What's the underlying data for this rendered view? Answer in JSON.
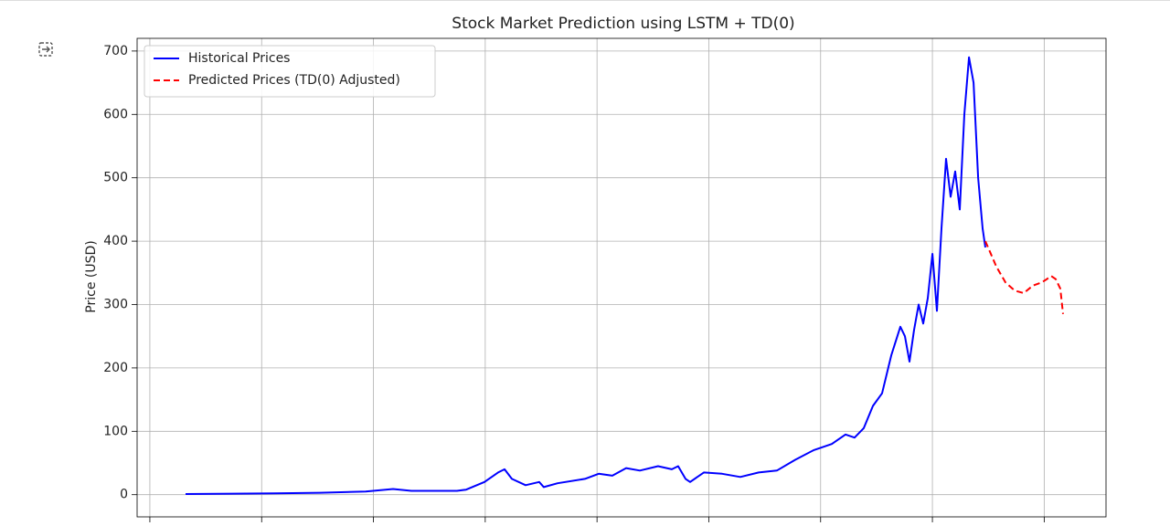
{
  "chart_data": {
    "type": "line",
    "title": "Stock Market Prediction using LSTM + TD(0)",
    "y_label": "Price (USD)",
    "xlim": [
      -114,
      8553
    ],
    "xticks": [
      0,
      1000,
      2000,
      3000,
      4000,
      5000,
      6000,
      7000,
      8000
    ],
    "ylim": [
      -35,
      720
    ],
    "yticks": [
      0,
      100,
      200,
      300,
      400,
      500,
      600,
      700
    ],
    "grid": true,
    "legend": "upper left",
    "series": [
      {
        "name": "Historical Prices",
        "color": "#0000ff",
        "linestyle": "solid",
        "x": [
          319,
          1112,
          1521,
          1930,
          2175,
          2339,
          2747,
          2829,
          2993,
          3115,
          3173,
          3238,
          3361,
          3483,
          3524,
          3647,
          3892,
          4015,
          4137,
          4260,
          4383,
          4546,
          4669,
          4726,
          4792,
          4833,
          4955,
          5119,
          5282,
          5446,
          5609,
          5773,
          5936,
          6100,
          6223,
          6304,
          6386,
          6468,
          6550,
          6632,
          6713,
          6754,
          6795,
          6836,
          6877,
          6918,
          6959,
          7000,
          7040,
          7081,
          7122,
          7163,
          7204,
          7245,
          7286,
          7327,
          7368,
          7409,
          7449,
          7474
        ],
        "values": [
          1,
          2,
          3,
          5,
          9,
          6,
          6,
          8,
          20,
          35,
          40,
          25,
          15,
          20,
          12,
          18,
          25,
          33,
          30,
          42,
          38,
          45,
          40,
          45,
          25,
          20,
          35,
          33,
          28,
          35,
          38,
          55,
          70,
          80,
          95,
          90,
          105,
          140,
          160,
          220,
          265,
          250,
          210,
          260,
          300,
          270,
          310,
          380,
          290,
          420,
          530,
          470,
          510,
          450,
          600,
          690,
          650,
          500,
          420,
          390
        ]
      },
      {
        "name": "Predicted Prices (TD(0) Adjusted)",
        "color": "#ff0000",
        "linestyle": "dashed",
        "x": [
          7474,
          7572,
          7654,
          7735,
          7817,
          7899,
          7981,
          8063,
          8103,
          8144,
          8169
        ],
        "values": [
          400,
          360,
          335,
          322,
          318,
          330,
          335,
          345,
          340,
          325,
          285
        ]
      }
    ]
  }
}
